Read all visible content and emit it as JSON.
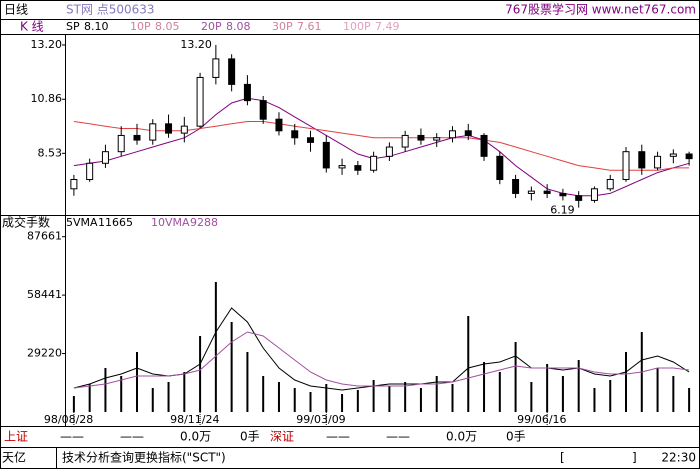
{
  "header": {
    "period": "日线",
    "stock": "ST网   点500633",
    "site": "767股票学习网 www.net767.com",
    "panel_label": "K  线"
  },
  "chart_data": [
    {
      "type": "candlestick",
      "legend": [
        {
          "label": "SP",
          "value": "8.10",
          "color": "#000000"
        },
        {
          "label": "10P",
          "value": "8.05",
          "color": "#d080a0"
        },
        {
          "label": "20P",
          "value": "8.08",
          "color": "#a050a0"
        },
        {
          "label": "30P",
          "value": "7.61",
          "color": "#d080a0"
        },
        {
          "label": "100P",
          "value": "7.49",
          "color": "#e0a0c0"
        }
      ],
      "open": [
        7.0,
        7.4,
        8.1,
        8.6,
        9.3,
        9.1,
        9.8,
        9.4,
        9.7,
        11.8,
        12.6,
        11.5,
        10.8,
        10.0,
        9.5,
        9.2,
        9.0,
        7.9,
        8.0,
        7.8,
        8.4,
        8.8,
        9.3,
        9.1,
        9.2,
        9.5,
        9.3,
        8.4,
        7.4,
        6.8,
        6.9,
        6.8,
        6.7,
        6.5,
        7.0,
        7.4,
        8.6,
        7.9,
        8.4,
        8.5
      ],
      "high": [
        7.6,
        8.3,
        8.9,
        9.7,
        9.8,
        10.0,
        10.2,
        10.1,
        12.0,
        13.2,
        12.8,
        11.9,
        11.0,
        10.3,
        9.8,
        9.5,
        9.3,
        8.3,
        8.2,
        8.6,
        9.0,
        9.5,
        9.6,
        9.4,
        9.7,
        9.8,
        9.4,
        8.6,
        7.6,
        7.1,
        7.2,
        7.0,
        6.9,
        7.1,
        7.6,
        8.8,
        8.9,
        8.6,
        8.7,
        8.6
      ],
      "low": [
        6.7,
        7.3,
        7.9,
        8.4,
        8.9,
        8.9,
        9.2,
        9.0,
        9.6,
        11.5,
        11.2,
        10.6,
        9.8,
        9.3,
        8.9,
        8.6,
        7.7,
        7.6,
        7.6,
        7.7,
        8.2,
        8.6,
        8.9,
        8.8,
        9.0,
        9.1,
        8.2,
        7.2,
        6.6,
        6.5,
        6.6,
        6.5,
        6.19,
        6.4,
        6.9,
        7.3,
        7.6,
        7.8,
        8.1,
        8.0
      ],
      "close": [
        7.4,
        8.1,
        8.6,
        9.3,
        9.1,
        9.8,
        9.4,
        9.7,
        11.8,
        12.6,
        11.5,
        10.8,
        10.0,
        9.5,
        9.2,
        9.0,
        7.9,
        8.0,
        7.8,
        8.4,
        8.8,
        9.3,
        9.1,
        9.2,
        9.5,
        9.3,
        8.4,
        7.4,
        6.8,
        6.9,
        6.8,
        6.7,
        6.5,
        7.0,
        7.4,
        8.6,
        7.9,
        8.4,
        8.5,
        8.3
      ],
      "ma_lines": [
        {
          "color": "#800080",
          "values": [
            8.0,
            8.1,
            8.2,
            8.4,
            8.6,
            8.8,
            9.0,
            9.2,
            9.6,
            10.2,
            10.7,
            10.9,
            10.8,
            10.5,
            10.1,
            9.7,
            9.3,
            8.9,
            8.5,
            8.3,
            8.4,
            8.6,
            8.8,
            9.0,
            9.2,
            9.3,
            9.1,
            8.6,
            8.0,
            7.5,
            7.0,
            6.8,
            6.7,
            6.7,
            6.8,
            7.1,
            7.4,
            7.7,
            7.9,
            8.1
          ]
        },
        {
          "color": "#e04040",
          "values": [
            9.9,
            9.8,
            9.7,
            9.6,
            9.6,
            9.5,
            9.5,
            9.5,
            9.6,
            9.7,
            9.8,
            9.9,
            9.9,
            9.8,
            9.7,
            9.6,
            9.5,
            9.4,
            9.3,
            9.2,
            9.2,
            9.2,
            9.2,
            9.2,
            9.2,
            9.2,
            9.1,
            9.0,
            8.8,
            8.6,
            8.4,
            8.2,
            8.0,
            7.9,
            7.8,
            7.8,
            7.8,
            7.8,
            7.9,
            7.9
          ]
        }
      ],
      "annotations": [
        {
          "value": 13.2,
          "label": "13.20"
        },
        {
          "value": 6.19,
          "label": "6.19"
        }
      ],
      "ylim": [
        6.0,
        13.5
      ],
      "yticks": [
        {
          "value": 13.2,
          "label": "13.20"
        },
        10.86,
        8.53
      ]
    },
    {
      "type": "bar",
      "title": "成交手数",
      "legend": [
        {
          "label": "5VMA",
          "value": 11665,
          "color": "#000000"
        },
        {
          "label": "10VMA",
          "value": 9288,
          "color": "#a050a0"
        }
      ],
      "categories": [
        "98/08/28",
        null,
        null,
        null,
        null,
        null,
        null,
        null,
        "98/11/24",
        null,
        null,
        null,
        null,
        null,
        null,
        null,
        "99/03/09",
        null,
        null,
        null,
        null,
        null,
        null,
        null,
        null,
        null,
        null,
        null,
        null,
        null,
        "99/06/16",
        null,
        null,
        null,
        null,
        null,
        null,
        null,
        null,
        null
      ],
      "values": [
        8000,
        14000,
        22000,
        18000,
        30000,
        12000,
        15000,
        20000,
        38000,
        65000,
        45000,
        30000,
        18000,
        15000,
        12000,
        10000,
        14000,
        9000,
        11000,
        16000,
        13000,
        15000,
        12000,
        18000,
        14000,
        48000,
        25000,
        20000,
        35000,
        15000,
        24000,
        18000,
        26000,
        12000,
        16000,
        30000,
        40000,
        22000,
        18000,
        12000
      ],
      "color": "#000000",
      "ma_lines": [
        {
          "color": "#000000",
          "values": [
            12000,
            14000,
            17000,
            19000,
            22000,
            19000,
            18000,
            19000,
            24000,
            40000,
            52000,
            45000,
            32000,
            22000,
            16000,
            13000,
            12000,
            11000,
            12000,
            13000,
            14000,
            14000,
            14000,
            15000,
            15000,
            22000,
            24000,
            25000,
            28000,
            22000,
            22000,
            21000,
            22000,
            19000,
            18000,
            20000,
            26000,
            28000,
            25000,
            20000
          ]
        },
        {
          "color": "#a050a0",
          "values": [
            12000,
            13000,
            14000,
            16000,
            18000,
            18000,
            18000,
            19000,
            21000,
            28000,
            35000,
            40000,
            38000,
            32000,
            26000,
            20000,
            16000,
            14000,
            13000,
            13000,
            13000,
            13000,
            14000,
            14000,
            15000,
            17000,
            19000,
            21000,
            23000,
            22000,
            22000,
            22000,
            22000,
            20000,
            19000,
            19000,
            20000,
            22000,
            22000,
            21000
          ]
        }
      ],
      "ylim": [
        0,
        90000
      ],
      "yticks": [
        87661,
        58441,
        29220
      ]
    }
  ],
  "status": [
    "上证",
    "——",
    "——",
    "0.0万",
    "0手",
    "深证",
    "——",
    "——",
    "0.0万",
    "0手"
  ],
  "footer": {
    "left": "天亿",
    "command": "技术分析查询更换指标(\"SCT\")",
    "open": "[",
    "close": "]",
    "time": "22:30"
  }
}
